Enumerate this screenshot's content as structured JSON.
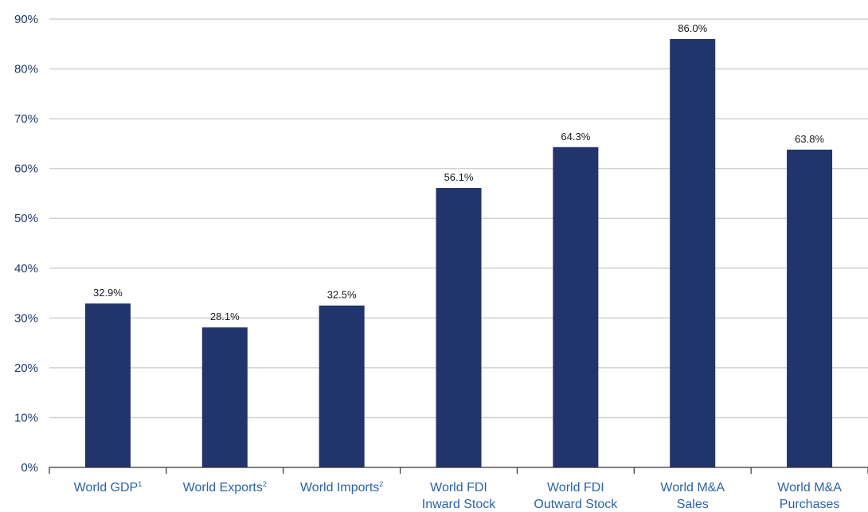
{
  "chart_data": {
    "type": "bar",
    "title": "",
    "xlabel": "",
    "ylabel": "",
    "ylim": [
      0,
      90
    ],
    "y_ticks": [
      "0%",
      "10%",
      "20%",
      "30%",
      "40%",
      "50%",
      "60%",
      "70%",
      "80%",
      "90%"
    ],
    "grid": true,
    "categories": [
      {
        "lines": [
          "World GDP"
        ],
        "sup": "1"
      },
      {
        "lines": [
          "World Exports"
        ],
        "sup": "2"
      },
      {
        "lines": [
          "World Imports"
        ],
        "sup": "2"
      },
      {
        "lines": [
          "World FDI",
          "Inward Stock"
        ],
        "sup": ""
      },
      {
        "lines": [
          "World FDI",
          "Outward Stock"
        ],
        "sup": ""
      },
      {
        "lines": [
          "World M&A",
          "Sales"
        ],
        "sup": ""
      },
      {
        "lines": [
          "World M&A",
          "Purchases"
        ],
        "sup": ""
      }
    ],
    "values": [
      32.9,
      28.1,
      32.5,
      56.1,
      64.3,
      86.0,
      63.8
    ],
    "data_labels": [
      "32.9%",
      "28.1%",
      "32.5%",
      "56.1%",
      "64.3%",
      "86.0%",
      "63.8%"
    ],
    "colors": {
      "bar": "#21346b",
      "grid": "#d0d0d0",
      "axis": "#333333",
      "tick_text": "#1f3a6b",
      "category_text": "#2b62a7"
    }
  }
}
